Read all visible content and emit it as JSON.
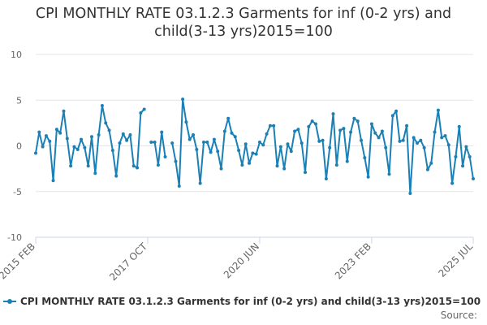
{
  "chart_data": {
    "type": "line",
    "title_lines": [
      "CPI MONTHLY RATE 03.1.2.3 Garments for inf (0-2 yrs) and",
      "child(3-13 yrs)2015=100"
    ],
    "y_ticks": [
      "10",
      "5",
      "0",
      "-5",
      "-10"
    ],
    "ylim": [
      -10,
      10
    ],
    "x_tick_labels": [
      "2015 FEB",
      "2017 OCT",
      "2020 JUN",
      "2023 FEB",
      "2025 JUL"
    ],
    "x_tick_months": [
      "2015-02",
      "2017-10",
      "2020-06",
      "2023-02",
      "2025-07"
    ],
    "start_month": "2015-02",
    "grid": "horizontal",
    "legend_position": "bottom-left",
    "series": [
      {
        "name": "CPI MONTHLY RATE 03.1.2.3 Garments for inf (0-2 yrs) and child(3-13 yrs)2015=100",
        "color": "#1a80b6",
        "values": [
          -0.8,
          1.5,
          -0.1,
          1.1,
          0.5,
          -3.8,
          1.8,
          1.4,
          3.8,
          0.8,
          -2.2,
          -0.1,
          -0.4,
          0.7,
          -0.2,
          -2.2,
          1.0,
          -3.0,
          1.2,
          4.4,
          2.5,
          1.7,
          -0.5,
          -3.3,
          0.3,
          1.3,
          0.6,
          1.2,
          -2.2,
          -2.4,
          3.6,
          4.0,
          null,
          0.4,
          0.4,
          -2.1,
          1.5,
          -1.2,
          null,
          0.3,
          -1.7,
          -4.4,
          5.1,
          2.6,
          0.7,
          1.2,
          -0.4,
          -4.1,
          0.4,
          0.4,
          -0.7,
          0.7,
          -0.6,
          -2.5,
          1.6,
          3.0,
          1.4,
          1.0,
          -0.5,
          -2.1,
          0.2,
          -1.9,
          -0.8,
          -0.9,
          0.4,
          0.1,
          1.3,
          2.2,
          2.2,
          -2.2,
          -0.1,
          -2.5,
          0.2,
          -0.6,
          1.6,
          1.8,
          0.3,
          -2.9,
          2.1,
          2.7,
          2.4,
          0.5,
          0.6,
          -3.6,
          -0.2,
          3.5,
          -2.1,
          1.7,
          1.9,
          -1.7,
          1.5,
          3.0,
          2.7,
          0.6,
          -1.3,
          -3.4,
          2.4,
          1.4,
          0.9,
          1.6,
          -0.2,
          -3.1,
          3.3,
          3.8,
          0.5,
          0.6,
          2.2,
          -5.2,
          0.9,
          0.3,
          0.6,
          -0.2,
          -2.6,
          -1.9,
          1.5,
          3.9,
          0.9,
          1.1,
          0.1,
          -4.1,
          -1.2,
          2.1,
          -2.2,
          -0.1,
          -1.2,
          -3.6
        ]
      }
    ]
  },
  "source_label": "Source:"
}
